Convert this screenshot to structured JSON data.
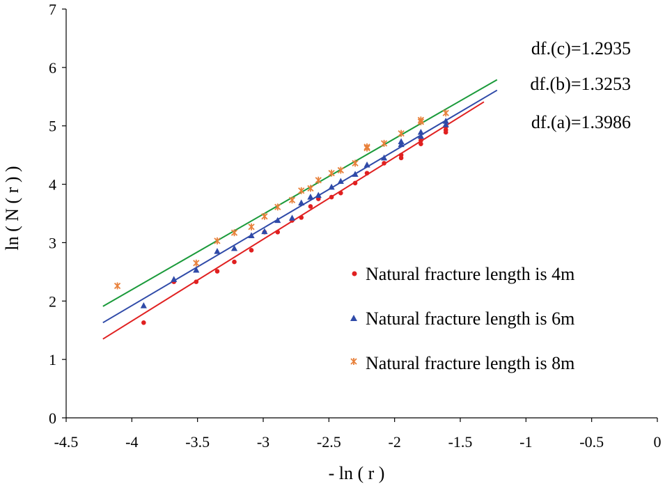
{
  "chart_data": {
    "type": "scatter",
    "title": "",
    "xlabel": "- ln ( r )",
    "ylabel": "ln ( N ( r ) )",
    "xlim": [
      -4.5,
      0
    ],
    "ylim": [
      0,
      7
    ],
    "xticks": [
      -4.5,
      -4,
      -3.5,
      -3,
      -2.5,
      -2,
      -1.5,
      -1,
      -0.5,
      0
    ],
    "xtick_labels": [
      "-4.5",
      "-4",
      "-3.5",
      "-3",
      "-2.5",
      "-2",
      "-1.5",
      "-1",
      "-0.5",
      "0"
    ],
    "yticks": [
      0,
      1,
      2,
      3,
      4,
      5,
      6,
      7
    ],
    "ytick_labels": [
      "0",
      "1",
      "2",
      "3",
      "4",
      "5",
      "6",
      "7"
    ],
    "grid": false,
    "legend_position": "bottom-right",
    "annotations": [
      {
        "text": "df.(c)=1.2935",
        "color": "#000000"
      },
      {
        "text": "df.(b)=1.3253",
        "color": "#000000"
      },
      {
        "text": "df.(a)=1.3986",
        "color": "#000000"
      }
    ],
    "series": [
      {
        "name": "Natural fracture length is 4m",
        "marker": "circle",
        "color": "#e02020",
        "points": [
          [
            -3.91,
            1.63
          ],
          [
            -3.68,
            2.33
          ],
          [
            -3.51,
            2.33
          ],
          [
            -3.35,
            2.51
          ],
          [
            -3.22,
            2.67
          ],
          [
            -3.09,
            2.87
          ],
          [
            -2.89,
            3.18
          ],
          [
            -2.99,
            3.18
          ],
          [
            -2.78,
            3.38
          ],
          [
            -2.71,
            3.43
          ],
          [
            -2.64,
            3.62
          ],
          [
            -2.58,
            3.75
          ],
          [
            -2.48,
            3.78
          ],
          [
            -2.41,
            3.85
          ],
          [
            -2.3,
            4.02
          ],
          [
            -2.21,
            4.19
          ],
          [
            -2.08,
            4.36
          ],
          [
            -1.95,
            4.45
          ],
          [
            -1.95,
            4.5
          ],
          [
            -1.8,
            4.69
          ],
          [
            -1.8,
            4.75
          ],
          [
            -1.61,
            4.89
          ],
          [
            -1.61,
            4.93
          ],
          [
            -1.61,
            4.98
          ]
        ],
        "fit": {
          "x": [
            -4.22,
            -1.32
          ],
          "y": [
            1.35,
            5.41
          ],
          "color": "#e02020"
        }
      },
      {
        "name": "Natural fracture length is 6m",
        "marker": "triangle",
        "color": "#2f4aa8",
        "points": [
          [
            -3.91,
            1.92
          ],
          [
            -3.68,
            2.37
          ],
          [
            -3.51,
            2.53
          ],
          [
            -3.35,
            2.85
          ],
          [
            -3.22,
            2.9
          ],
          [
            -3.09,
            3.12
          ],
          [
            -2.99,
            3.19
          ],
          [
            -2.89,
            3.38
          ],
          [
            -2.78,
            3.42
          ],
          [
            -2.71,
            3.68
          ],
          [
            -2.64,
            3.78
          ],
          [
            -2.58,
            3.81
          ],
          [
            -2.48,
            3.95
          ],
          [
            -2.41,
            4.05
          ],
          [
            -2.3,
            4.17
          ],
          [
            -2.21,
            4.33
          ],
          [
            -2.08,
            4.45
          ],
          [
            -1.95,
            4.68
          ],
          [
            -1.95,
            4.73
          ],
          [
            -1.8,
            4.82
          ],
          [
            -1.8,
            4.89
          ],
          [
            -1.61,
            5.02
          ],
          [
            -1.61,
            5.08
          ]
        ],
        "fit": {
          "x": [
            -4.22,
            -1.22
          ],
          "y": [
            1.63,
            5.61
          ],
          "color": "#2f4aa8"
        }
      },
      {
        "name": "Natural fracture length is 8m",
        "marker": "asterisk",
        "color": "#e8803a",
        "points": [
          [
            -4.11,
            2.26
          ],
          [
            -3.51,
            2.65
          ],
          [
            -3.35,
            3.03
          ],
          [
            -3.22,
            3.17
          ],
          [
            -3.09,
            3.27
          ],
          [
            -2.99,
            3.45
          ],
          [
            -2.89,
            3.61
          ],
          [
            -2.78,
            3.73
          ],
          [
            -2.71,
            3.89
          ],
          [
            -2.64,
            3.93
          ],
          [
            -2.58,
            4.07
          ],
          [
            -2.48,
            4.19
          ],
          [
            -2.41,
            4.24
          ],
          [
            -2.3,
            4.36
          ],
          [
            -2.21,
            4.62
          ],
          [
            -2.21,
            4.64
          ],
          [
            -2.08,
            4.7
          ],
          [
            -1.95,
            4.87
          ],
          [
            -1.8,
            5.07
          ],
          [
            -1.8,
            5.1
          ],
          [
            -1.61,
            5.22
          ]
        ],
        "fit": {
          "x": [
            -4.22,
            -1.22
          ],
          "y": [
            1.91,
            5.79
          ],
          "color": "#1a9a3a"
        }
      }
    ]
  }
}
